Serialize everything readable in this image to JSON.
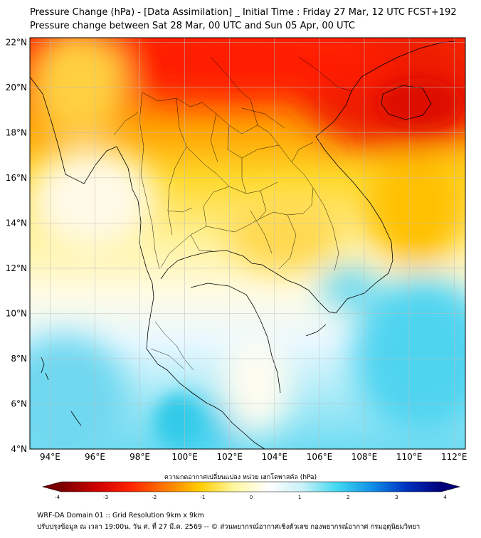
{
  "header": {
    "title": "Pressure Change (hPa) - [Data Assimilation] _ Initial Time : Friday 27 Mar, 12 UTC FCST+192",
    "subtitle": "Pressure change between Sat 28 Mar, 00 UTC and Sun 05 Apr, 00 UTC"
  },
  "map": {
    "lat_labels": [
      "22°N",
      "20°N",
      "18°N",
      "16°N",
      "14°N",
      "12°N",
      "10°N",
      "8°N",
      "6°N",
      "4°N"
    ],
    "lon_labels": [
      "94°E",
      "96°E",
      "98°E",
      "100°E",
      "102°E",
      "104°E",
      "106°E",
      "108°E",
      "110°E",
      "112°E"
    ],
    "lat_range": [
      4,
      22.2
    ],
    "lon_range": [
      93.1,
      112.5
    ]
  },
  "colorbar": {
    "label": "ความกดอากาศเปลี่ยนแปลง หน่วย เฮกโตพาสคัล (hPa)",
    "ticks": [
      "-4",
      "-3",
      "-2",
      "-1",
      "0",
      "1",
      "2",
      "3",
      "4"
    ],
    "range": [
      -4.3,
      4.3
    ],
    "colors": [
      "#7a0000",
      "#cc0000",
      "#ff2200",
      "#ff7700",
      "#ffcc00",
      "#fff7a0",
      "#ffffff",
      "#c8f0f8",
      "#40d8f0",
      "#1090e8",
      "#0030c0",
      "#00007a"
    ]
  },
  "footer": {
    "line1": "WRF-DA Domain 01 :: Grid Resolution 9km x 9km",
    "line2": "ปรับปรุงข้อมูล ณ เวลา 19:00น. วัน ศ. ที่ 27 มี.ค. 2569 -- © ส่วนพยากรณ์อากาศเชิงตัวเลข กองพยากรณ์อากาศ กรมอุตุนิยมวิทยา"
  }
}
